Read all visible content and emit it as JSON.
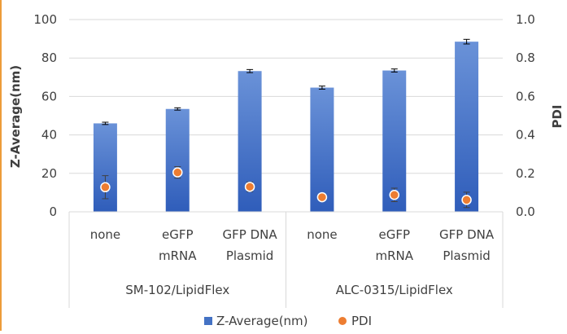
{
  "chart_data": {
    "type": "bar",
    "groups": [
      {
        "label": "SM-102/LipidFlex",
        "categories": [
          [
            "none"
          ],
          [
            "eGFP",
            "mRNA"
          ],
          [
            "GFP DNA",
            "Plasmid"
          ]
        ]
      },
      {
        "label": "ALC-0315/LipidFlex",
        "categories": [
          [
            "none"
          ],
          [
            "eGFP",
            "mRNA"
          ],
          [
            "GFP DNA",
            "Plasmid"
          ]
        ]
      }
    ],
    "series": [
      {
        "name": "Z-Average(nm)",
        "axis": "left",
        "kind": "bar",
        "values": [
          46,
          53.5,
          73.2,
          64.6,
          73.5,
          88.5
        ],
        "errors": [
          0.6,
          0.6,
          0.8,
          0.8,
          0.8,
          1.2
        ],
        "color": "#4472C4"
      },
      {
        "name": "PDI",
        "axis": "right",
        "kind": "point",
        "values": [
          0.128,
          0.205,
          0.13,
          0.076,
          0.088,
          0.062
        ],
        "errors": [
          0.06,
          0.03,
          0.025,
          0.01,
          0.035,
          0.04
        ],
        "color": "#ED7D31"
      }
    ],
    "ylabel": "Z-Average(nm)",
    "y2label": "PDI",
    "ylim": [
      0,
      100
    ],
    "y2lim": [
      0,
      1.0
    ],
    "yticks": [
      "0",
      "20",
      "40",
      "60",
      "80",
      "100"
    ],
    "y2ticks": [
      "0.0",
      "0.2",
      "0.4",
      "0.6",
      "0.8",
      "1.0"
    ],
    "grid": true,
    "legend_position": "bottom"
  },
  "colors": {
    "bar_top": "#6A92D8",
    "bar_bottom": "#2F5DBA",
    "grid": "#D9D9D9",
    "frame_rule": "#ED9C3A"
  }
}
